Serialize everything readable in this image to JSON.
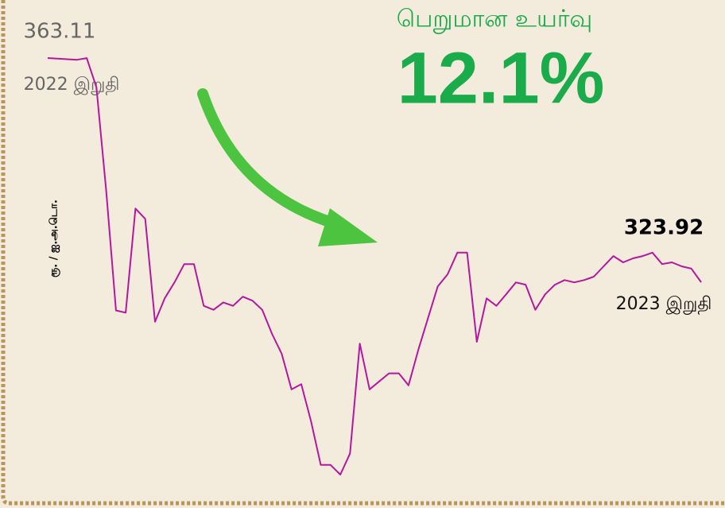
{
  "chart_data": {
    "type": "line",
    "title": "பெறுமான உயர்வு",
    "headline": "12.1%",
    "y_label": "ரூ. / ஐ.அ.டொ.",
    "start_label": "2022 இறுதி",
    "end_label": "2023 இறுதி",
    "color": "#b5179e",
    "values": [
      363.11,
      363.0,
      362.9,
      362.8,
      363.1,
      358.0,
      339.9,
      319.0,
      318.6,
      336.8,
      335.0,
      317.0,
      321.1,
      323.9,
      327.1,
      327.1,
      319.8,
      319.1,
      320.4,
      319.8,
      321.4,
      320.7,
      319.1,
      314.9,
      311.4,
      305.2,
      306.1,
      299.6,
      292.0,
      292.0,
      290.3,
      294.0,
      313.2,
      305.2,
      306.6,
      308.0,
      308.0,
      305.9,
      312.1,
      317.7,
      323.2,
      325.3,
      329.1,
      329.1,
      313.5,
      321.1,
      319.8,
      321.8,
      323.9,
      323.5,
      319.1,
      321.8,
      323.5,
      324.3,
      323.9,
      324.3,
      324.9,
      326.7,
      328.5,
      327.4,
      328.1,
      328.5,
      329.1,
      327.1,
      327.4,
      326.7,
      326.3,
      323.92
    ]
  }
}
